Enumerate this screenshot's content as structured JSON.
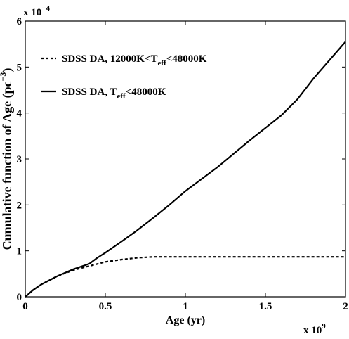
{
  "chart_data": {
    "type": "line",
    "xlabel": "Age (yr)",
    "ylabel": "Cumulative function of Age (pc",
    "ylabel_unit_exp": "−3",
    "ylabel_close": ")",
    "x_multiplier": {
      "base": "x 10",
      "exp": "9"
    },
    "y_multiplier": {
      "base": "x 10",
      "exp": "−4"
    },
    "xlim": [
      0,
      2
    ],
    "ylim": [
      0,
      6
    ],
    "x_ticks": [
      0,
      0.5,
      1,
      1.5,
      2
    ],
    "x_tick_labels": [
      "0",
      "0.5",
      "1",
      "1.5",
      "2"
    ],
    "y_ticks": [
      0,
      1,
      2,
      3,
      4,
      5,
      6
    ],
    "y_tick_labels": [
      "0",
      "1",
      "2",
      "3",
      "4",
      "5",
      "6"
    ],
    "grid": false,
    "legend_position": "top-left",
    "series": [
      {
        "name": "SDSS DA, 12000K<T",
        "name_sub": "eff",
        "name_tail": "<48000K",
        "style": "dashed",
        "color": "#000000",
        "x": [
          0,
          0.05,
          0.1,
          0.2,
          0.3,
          0.4,
          0.5,
          0.6,
          0.7,
          0.8,
          0.9,
          1.0,
          1.2,
          1.4,
          1.6,
          1.8,
          2.0
        ],
        "y": [
          0,
          0.15,
          0.27,
          0.45,
          0.58,
          0.67,
          0.76,
          0.81,
          0.85,
          0.87,
          0.87,
          0.87,
          0.87,
          0.87,
          0.87,
          0.87,
          0.87
        ]
      },
      {
        "name": "SDSS DA, T",
        "name_sub": "eff",
        "name_tail": "<48000K",
        "style": "solid",
        "color": "#000000",
        "x": [
          0,
          0.05,
          0.1,
          0.2,
          0.3,
          0.4,
          0.45,
          0.5,
          0.6,
          0.7,
          0.8,
          0.9,
          1.0,
          1.2,
          1.4,
          1.6,
          1.7,
          1.8,
          1.9,
          2.0
        ],
        "y": [
          0,
          0.15,
          0.27,
          0.45,
          0.6,
          0.72,
          0.85,
          0.96,
          1.2,
          1.45,
          1.72,
          2.0,
          2.3,
          2.82,
          3.4,
          3.95,
          4.3,
          4.75,
          5.15,
          5.55
        ]
      }
    ]
  }
}
